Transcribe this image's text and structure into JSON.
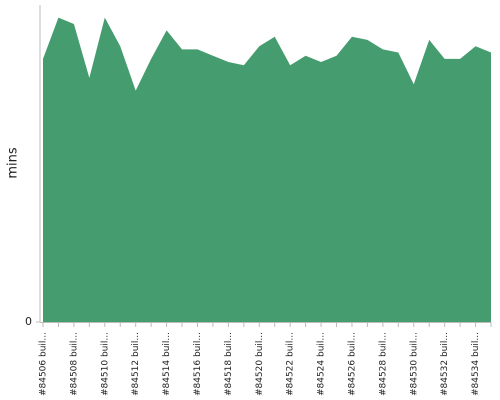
{
  "chart_data": {
    "type": "area",
    "y_label": "mins",
    "categories": [
      "#84506 buil...",
      null,
      "#84508 buil...",
      null,
      "#84510 buil...",
      null,
      "#84512 buil...",
      null,
      "#84514 buil...",
      null,
      "#84516 buil...",
      null,
      "#84518 buil...",
      null,
      "#84520 buil...",
      null,
      "#84522 buil...",
      null,
      "#84524 buil...",
      null,
      "#84526 buil...",
      null,
      "#84528 buil...",
      null,
      "#84530 buil...",
      null,
      "#84532 buil...",
      null,
      "#84534 buil...",
      null
    ],
    "values": [
      83,
      96,
      94,
      77,
      96,
      87,
      73,
      83,
      92,
      86,
      86,
      84,
      82,
      81,
      87,
      90,
      81,
      84,
      82,
      84,
      90,
      89,
      86,
      85,
      75,
      89,
      83,
      83,
      87,
      85
    ],
    "color": "#459c6e",
    "ylim": [
      0,
      100
    ],
    "yticks": [
      0
    ]
  }
}
